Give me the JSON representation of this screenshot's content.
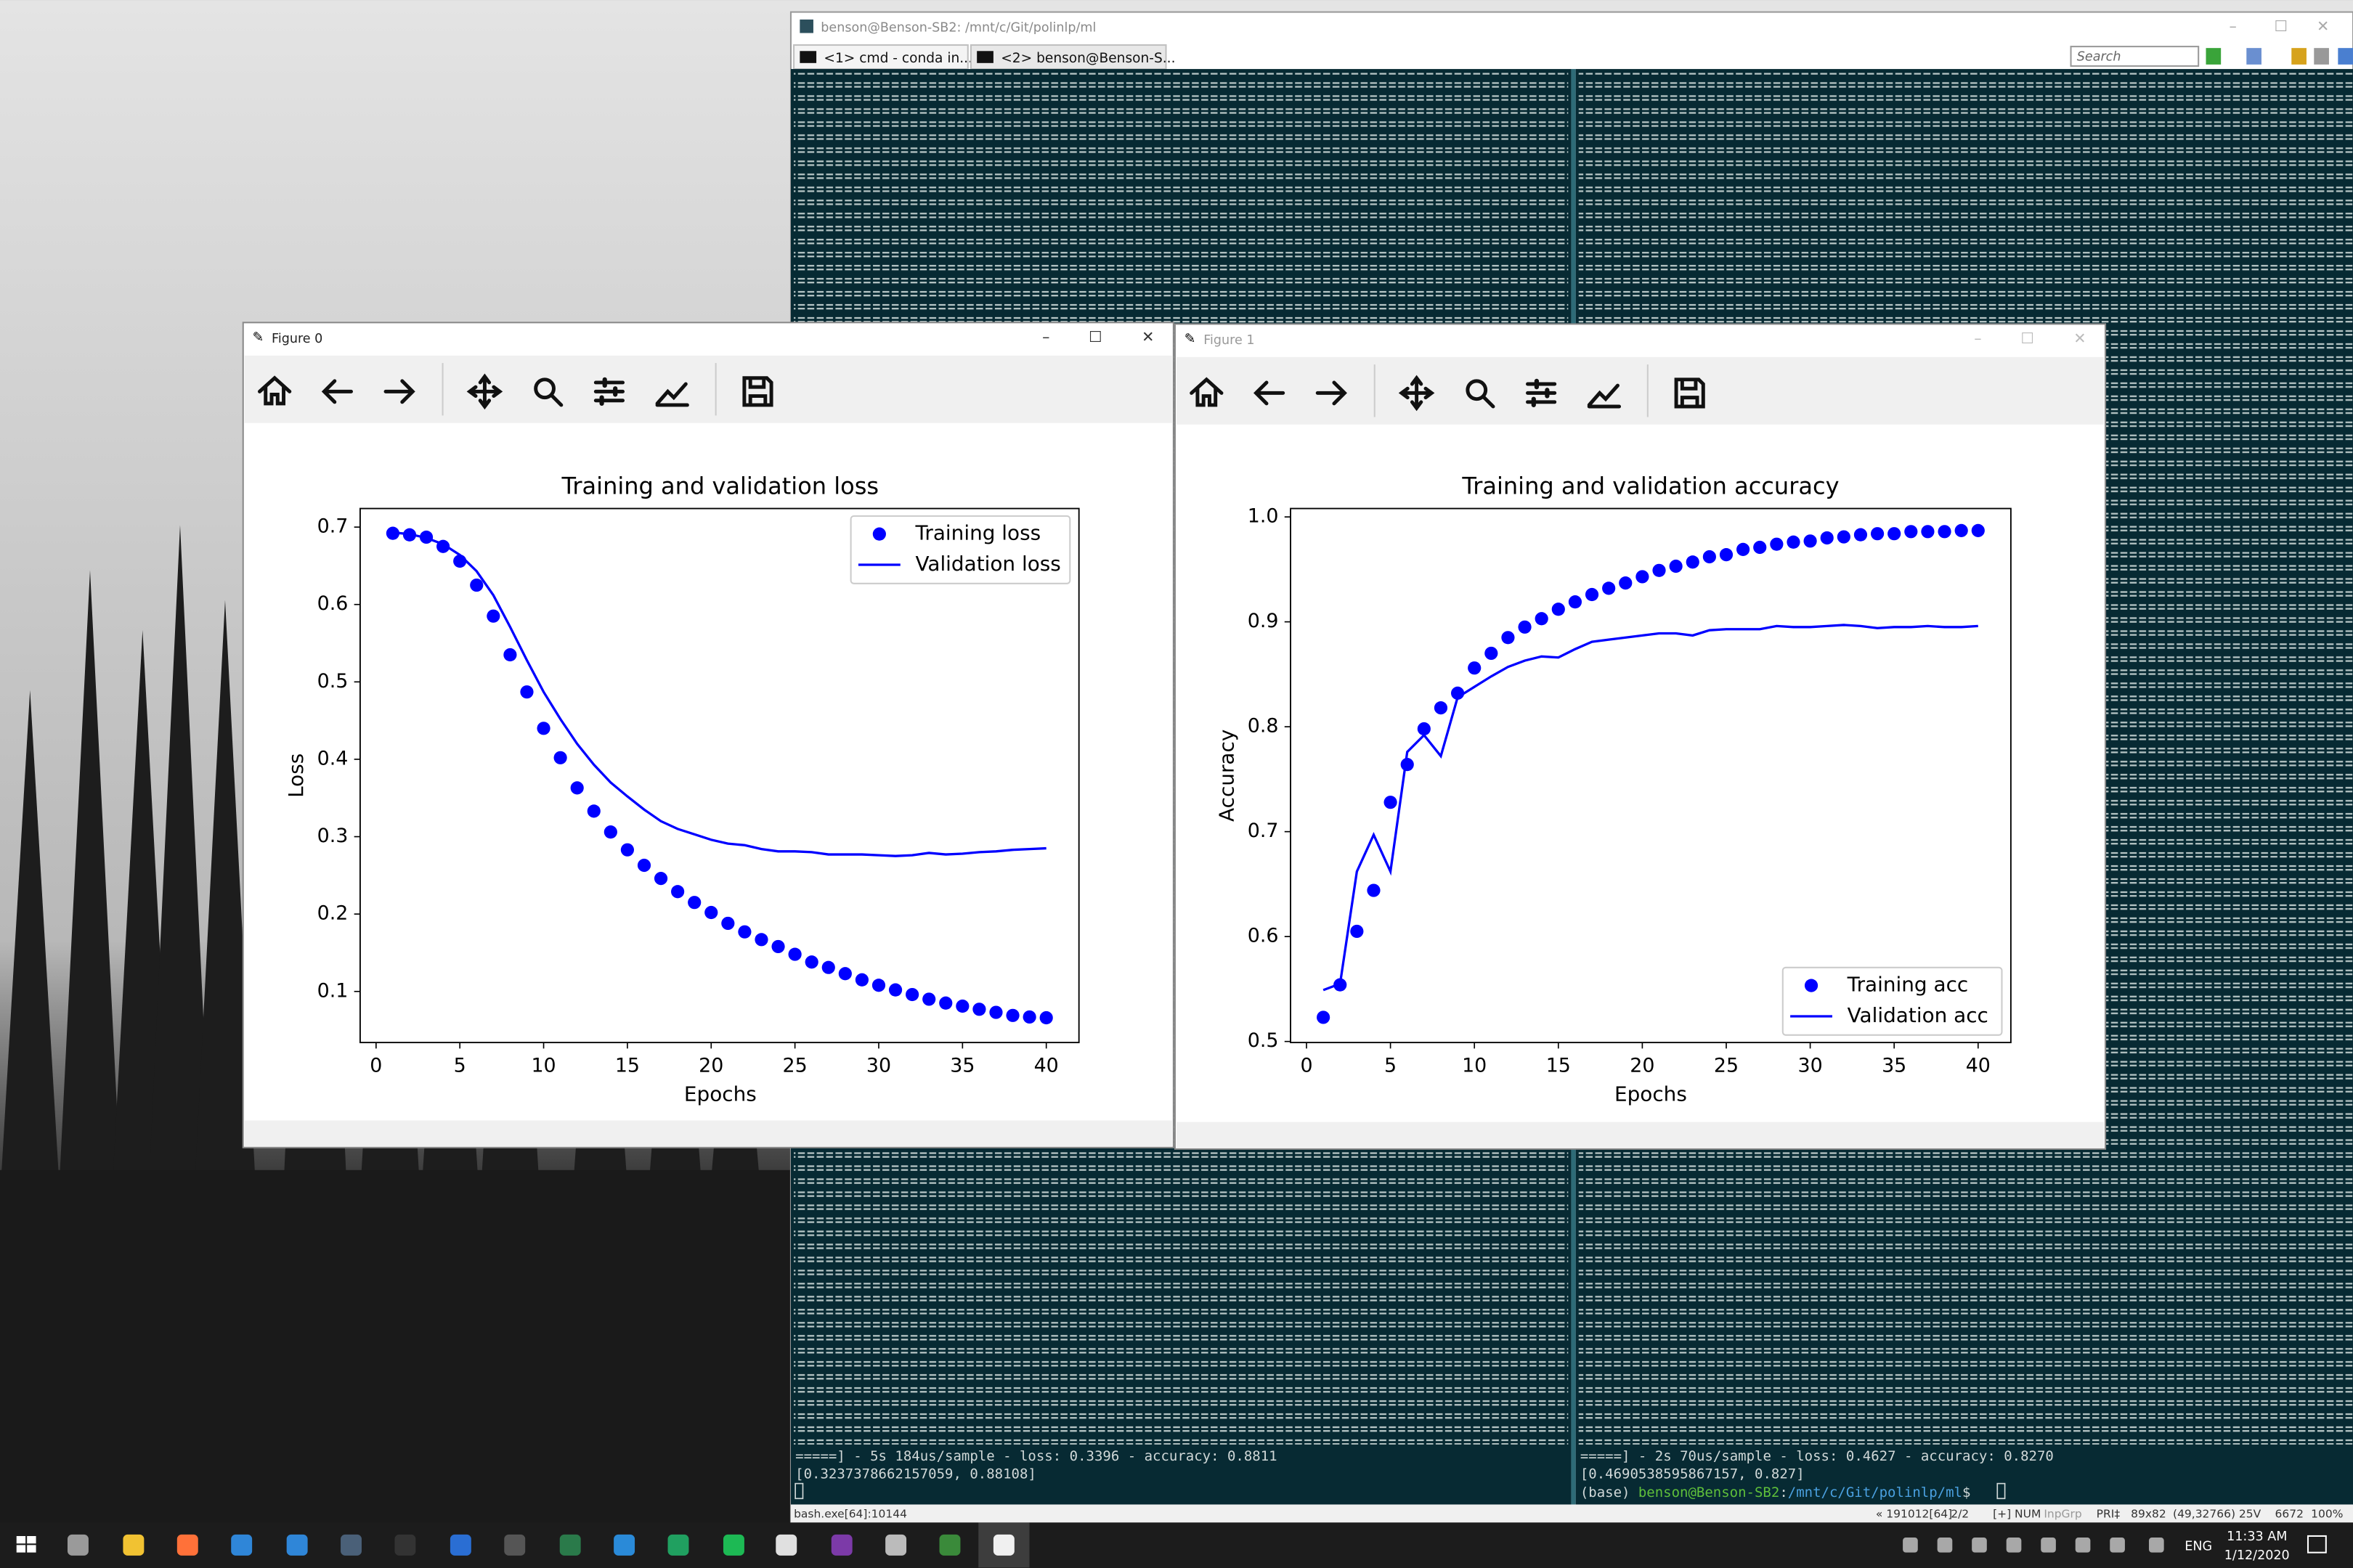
{
  "terminal": {
    "title": "benson@Benson-SB2: /mnt/c/Git/polinlp/ml",
    "tabs": [
      "<1> cmd - conda  in...",
      "<2> benson@Benson-S..."
    ],
    "search": "Search",
    "left_pane": [
      "=====] - 5s 184us/sample - loss: 0.3396 - accuracy: 0.8811",
      "[0.3237378662157059, 0.88108]"
    ],
    "right_pane": [
      "=====] - 2s 70us/sample - loss: 0.4627 - accuracy: 0.8270",
      "[0.4690538595867157, 0.827]"
    ],
    "prompt": [
      "(base)",
      "benson@Benson-SB2",
      ":",
      "/mnt/c/Git/polinlp/ml",
      "$"
    ],
    "status_left": "bash.exe[64]:10144",
    "status_right": [
      "« 191012[64]",
      "2/2",
      "[+] NUM",
      "InpGrp",
      "PRI‡",
      "89x82",
      "(49,32766) 25V",
      "6672",
      "100%"
    ]
  },
  "figures": [
    {
      "title": "Figure 0"
    },
    {
      "title": "Figure 1"
    }
  ],
  "chart_data": [
    {
      "type": "scatter_line",
      "title": "Training and validation loss",
      "x_label": "Epochs",
      "y_label": "Loss",
      "x": [
        1,
        2,
        3,
        4,
        5,
        6,
        7,
        8,
        9,
        10,
        11,
        12,
        13,
        14,
        15,
        16,
        17,
        18,
        19,
        20,
        21,
        22,
        23,
        24,
        25,
        26,
        27,
        28,
        29,
        30,
        31,
        32,
        33,
        34,
        35,
        36,
        37,
        38,
        39,
        40
      ],
      "series": [
        {
          "name": "Training loss",
          "color": "#0000ff",
          "mode": "markers",
          "values": [
            0.692,
            0.69,
            0.687,
            0.675,
            0.656,
            0.625,
            0.585,
            0.535,
            0.487,
            0.44,
            0.402,
            0.363,
            0.333,
            0.306,
            0.283,
            0.263,
            0.246,
            0.229,
            0.215,
            0.202,
            0.188,
            0.177,
            0.167,
            0.158,
            0.148,
            0.138,
            0.131,
            0.123,
            0.115,
            0.108,
            0.102,
            0.096,
            0.09,
            0.085,
            0.081,
            0.077,
            0.073,
            0.069,
            0.067,
            0.066
          ]
        },
        {
          "name": "Validation loss",
          "color": "#0000ff",
          "mode": "line",
          "values": [
            0.693,
            0.691,
            0.686,
            0.678,
            0.664,
            0.643,
            0.612,
            0.571,
            0.528,
            0.487,
            0.452,
            0.42,
            0.393,
            0.37,
            0.352,
            0.335,
            0.32,
            0.31,
            0.303,
            0.296,
            0.291,
            0.289,
            0.284,
            0.281,
            0.281,
            0.28,
            0.277,
            0.277,
            0.277,
            0.276,
            0.275,
            0.276,
            0.279,
            0.277,
            0.278,
            0.28,
            0.281,
            0.283,
            0.284,
            0.285
          ]
        }
      ],
      "xlim": [
        -0.95,
        41.95
      ],
      "xticks": [
        0,
        5,
        10,
        15,
        20,
        25,
        30,
        35,
        40
      ],
      "ylim": [
        0.034,
        0.724
      ],
      "yticks": [
        0.1,
        0.2,
        0.3,
        0.4,
        0.5,
        0.6,
        0.7
      ],
      "legend": "upper right"
    },
    {
      "type": "scatter_line",
      "title": "Training and validation accuracy",
      "x_label": "Epochs",
      "y_label": "Accuracy",
      "x": [
        1,
        2,
        3,
        4,
        5,
        6,
        7,
        8,
        9,
        10,
        11,
        12,
        13,
        14,
        15,
        16,
        17,
        18,
        19,
        20,
        21,
        22,
        23,
        24,
        25,
        26,
        27,
        28,
        29,
        30,
        31,
        32,
        33,
        34,
        35,
        36,
        37,
        38,
        39,
        40
      ],
      "series": [
        {
          "name": "Training acc",
          "color": "#0000ff",
          "mode": "markers",
          "values": [
            0.523,
            0.554,
            0.605,
            0.644,
            0.728,
            0.764,
            0.798,
            0.818,
            0.832,
            0.856,
            0.87,
            0.885,
            0.895,
            0.903,
            0.912,
            0.919,
            0.926,
            0.932,
            0.937,
            0.943,
            0.949,
            0.953,
            0.957,
            0.962,
            0.964,
            0.969,
            0.971,
            0.974,
            0.976,
            0.977,
            0.98,
            0.981,
            0.983,
            0.984,
            0.984,
            0.986,
            0.986,
            0.986,
            0.987,
            0.987
          ]
        },
        {
          "name": "Validation acc",
          "color": "#0000ff",
          "mode": "line",
          "values": [
            0.549,
            0.555,
            0.662,
            0.697,
            0.662,
            0.776,
            0.792,
            0.772,
            0.828,
            0.838,
            0.848,
            0.857,
            0.863,
            0.867,
            0.866,
            0.874,
            0.881,
            0.883,
            0.885,
            0.887,
            0.889,
            0.889,
            0.887,
            0.892,
            0.893,
            0.893,
            0.893,
            0.896,
            0.895,
            0.895,
            0.896,
            0.897,
            0.896,
            0.894,
            0.895,
            0.895,
            0.896,
            0.895,
            0.895,
            0.896
          ]
        }
      ],
      "xlim": [
        -0.95,
        41.95
      ],
      "xticks": [
        0,
        5,
        10,
        15,
        20,
        25,
        30,
        35,
        40
      ],
      "ylim": [
        0.499,
        1.008
      ],
      "yticks": [
        0.5,
        0.6,
        0.7,
        0.8,
        0.9,
        {
          "value": 1,
          "label": "1.0"
        }
      ],
      "legend": "lower right"
    }
  ],
  "taskbar": {
    "language": "ENG",
    "time": "11:33 AM",
    "date": "1/12/2020"
  }
}
